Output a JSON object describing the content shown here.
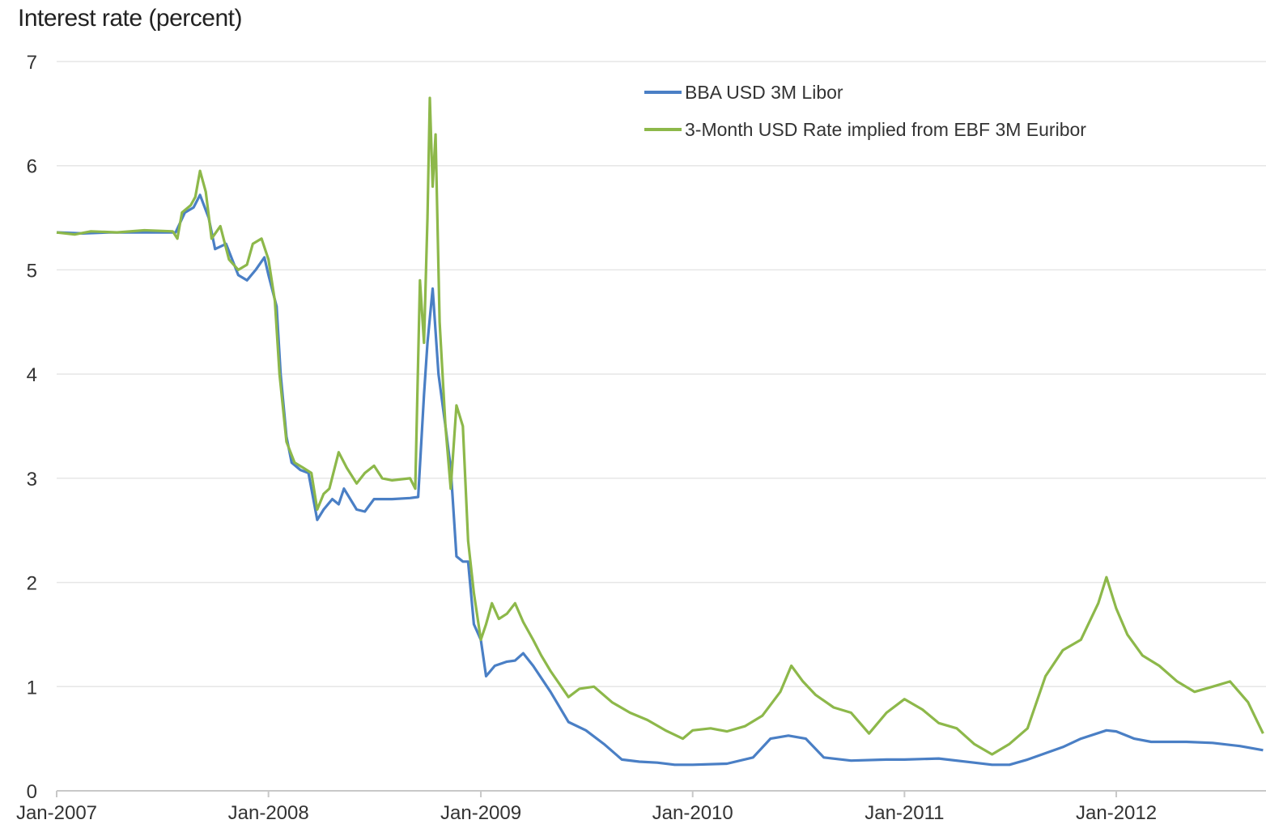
{
  "chart_data": {
    "type": "line",
    "title": "",
    "ylabel": "Interest rate (percent)",
    "xlabel": "",
    "ylim": [
      0,
      7
    ],
    "yticks": [
      "0",
      "1",
      "2",
      "3",
      "4",
      "5",
      "6",
      "7"
    ],
    "xlim": [
      "2007-01",
      "2012-09"
    ],
    "xtick_labels": [
      "Jan-2007",
      "Jan-2008",
      "Jan-2009",
      "Jan-2010",
      "Jan-2011",
      "Jan-2012"
    ],
    "xtick_dates": [
      "2007-01",
      "2008-01",
      "2009-01",
      "2010-01",
      "2011-01",
      "2012-01"
    ],
    "grid": true,
    "legend_position": "top-right",
    "series": [
      {
        "name": "BBA USD 3M Libor",
        "color": "#4a7fc5",
        "points": [
          [
            "2007-01-01",
            5.36
          ],
          [
            "2007-02-15",
            5.35
          ],
          [
            "2007-04-01",
            5.36
          ],
          [
            "2007-06-01",
            5.36
          ],
          [
            "2007-07-25",
            5.36
          ],
          [
            "2007-08-10",
            5.55
          ],
          [
            "2007-08-25",
            5.6
          ],
          [
            "2007-09-05",
            5.72
          ],
          [
            "2007-09-20",
            5.5
          ],
          [
            "2007-10-01",
            5.2
          ],
          [
            "2007-10-20",
            5.25
          ],
          [
            "2007-11-10",
            4.95
          ],
          [
            "2007-11-25",
            4.9
          ],
          [
            "2007-12-10",
            5.0
          ],
          [
            "2007-12-25",
            5.12
          ],
          [
            "2008-01-01",
            4.95
          ],
          [
            "2008-01-08",
            4.8
          ],
          [
            "2008-01-15",
            4.65
          ],
          [
            "2008-01-22",
            4.0
          ],
          [
            "2008-02-01",
            3.4
          ],
          [
            "2008-02-10",
            3.15
          ],
          [
            "2008-02-25",
            3.08
          ],
          [
            "2008-03-10",
            3.05
          ],
          [
            "2008-03-25",
            2.6
          ],
          [
            "2008-04-05",
            2.7
          ],
          [
            "2008-04-20",
            2.8
          ],
          [
            "2008-05-01",
            2.75
          ],
          [
            "2008-05-10",
            2.9
          ],
          [
            "2008-06-01",
            2.7
          ],
          [
            "2008-06-15",
            2.68
          ],
          [
            "2008-07-01",
            2.8
          ],
          [
            "2008-08-01",
            2.8
          ],
          [
            "2008-09-01",
            2.81
          ],
          [
            "2008-09-15",
            2.82
          ],
          [
            "2008-09-25",
            3.8
          ],
          [
            "2008-10-01",
            4.3
          ],
          [
            "2008-10-10",
            4.82
          ],
          [
            "2008-10-20",
            4.0
          ],
          [
            "2008-11-01",
            3.5
          ],
          [
            "2008-11-10",
            3.1
          ],
          [
            "2008-11-20",
            2.25
          ],
          [
            "2008-12-01",
            2.2
          ],
          [
            "2008-12-10",
            2.2
          ],
          [
            "2008-12-20",
            1.6
          ],
          [
            "2009-01-01",
            1.45
          ],
          [
            "2009-01-10",
            1.1
          ],
          [
            "2009-01-25",
            1.2
          ],
          [
            "2009-02-15",
            1.24
          ],
          [
            "2009-03-01",
            1.25
          ],
          [
            "2009-03-15",
            1.32
          ],
          [
            "2009-04-01",
            1.2
          ],
          [
            "2009-05-01",
            0.95
          ],
          [
            "2009-06-01",
            0.66
          ],
          [
            "2009-07-01",
            0.58
          ],
          [
            "2009-08-01",
            0.45
          ],
          [
            "2009-09-01",
            0.3
          ],
          [
            "2009-10-01",
            0.28
          ],
          [
            "2009-11-01",
            0.27
          ],
          [
            "2009-12-01",
            0.25
          ],
          [
            "2010-01-01",
            0.25
          ],
          [
            "2010-03-01",
            0.26
          ],
          [
            "2010-04-15",
            0.32
          ],
          [
            "2010-05-15",
            0.5
          ],
          [
            "2010-06-15",
            0.53
          ],
          [
            "2010-07-15",
            0.5
          ],
          [
            "2010-08-15",
            0.32
          ],
          [
            "2010-10-01",
            0.29
          ],
          [
            "2010-12-01",
            0.3
          ],
          [
            "2011-01-01",
            0.3
          ],
          [
            "2011-03-01",
            0.31
          ],
          [
            "2011-05-01",
            0.27
          ],
          [
            "2011-06-01",
            0.25
          ],
          [
            "2011-07-01",
            0.25
          ],
          [
            "2011-08-01",
            0.3
          ],
          [
            "2011-10-01",
            0.42
          ],
          [
            "2011-11-01",
            0.5
          ],
          [
            "2011-12-15",
            0.58
          ],
          [
            "2012-01-01",
            0.57
          ],
          [
            "2012-02-01",
            0.5
          ],
          [
            "2012-03-01",
            0.47
          ],
          [
            "2012-05-01",
            0.47
          ],
          [
            "2012-06-15",
            0.46
          ],
          [
            "2012-08-01",
            0.43
          ],
          [
            "2012-09-10",
            0.39
          ]
        ]
      },
      {
        "name": "3-Month USD Rate implied from EBF 3M Euribor",
        "color": "#8db84a",
        "points": [
          [
            "2007-01-01",
            5.36
          ],
          [
            "2007-02-01",
            5.34
          ],
          [
            "2007-03-01",
            5.37
          ],
          [
            "2007-04-15",
            5.36
          ],
          [
            "2007-06-01",
            5.38
          ],
          [
            "2007-07-20",
            5.37
          ],
          [
            "2007-07-28",
            5.3
          ],
          [
            "2007-08-05",
            5.55
          ],
          [
            "2007-08-20",
            5.62
          ],
          [
            "2007-08-28",
            5.7
          ],
          [
            "2007-09-05",
            5.95
          ],
          [
            "2007-09-15",
            5.75
          ],
          [
            "2007-09-25",
            5.3
          ],
          [
            "2007-10-10",
            5.42
          ],
          [
            "2007-10-25",
            5.1
          ],
          [
            "2007-11-10",
            5.0
          ],
          [
            "2007-11-25",
            5.05
          ],
          [
            "2007-12-05",
            5.25
          ],
          [
            "2007-12-20",
            5.3
          ],
          [
            "2008-01-01",
            5.1
          ],
          [
            "2008-01-12",
            4.7
          ],
          [
            "2008-01-20",
            4.0
          ],
          [
            "2008-02-01",
            3.35
          ],
          [
            "2008-02-15",
            3.15
          ],
          [
            "2008-03-01",
            3.1
          ],
          [
            "2008-03-15",
            3.05
          ],
          [
            "2008-03-25",
            2.7
          ],
          [
            "2008-04-05",
            2.85
          ],
          [
            "2008-04-15",
            2.9
          ],
          [
            "2008-05-01",
            3.25
          ],
          [
            "2008-05-15",
            3.1
          ],
          [
            "2008-06-01",
            2.95
          ],
          [
            "2008-06-15",
            3.05
          ],
          [
            "2008-07-01",
            3.12
          ],
          [
            "2008-07-15",
            3.0
          ],
          [
            "2008-08-01",
            2.98
          ],
          [
            "2008-09-01",
            3.0
          ],
          [
            "2008-09-10",
            2.9
          ],
          [
            "2008-09-18",
            4.9
          ],
          [
            "2008-09-25",
            4.3
          ],
          [
            "2008-10-01",
            5.5
          ],
          [
            "2008-10-05",
            6.65
          ],
          [
            "2008-10-10",
            5.8
          ],
          [
            "2008-10-15",
            6.3
          ],
          [
            "2008-10-22",
            4.5
          ],
          [
            "2008-11-01",
            3.5
          ],
          [
            "2008-11-10",
            2.9
          ],
          [
            "2008-11-20",
            3.7
          ],
          [
            "2008-12-01",
            3.5
          ],
          [
            "2008-12-10",
            2.4
          ],
          [
            "2008-12-20",
            1.9
          ],
          [
            "2009-01-01",
            1.45
          ],
          [
            "2009-01-10",
            1.6
          ],
          [
            "2009-01-20",
            1.8
          ],
          [
            "2009-02-01",
            1.65
          ],
          [
            "2009-02-15",
            1.7
          ],
          [
            "2009-03-01",
            1.8
          ],
          [
            "2009-03-15",
            1.62
          ],
          [
            "2009-04-01",
            1.45
          ],
          [
            "2009-04-15",
            1.3
          ],
          [
            "2009-05-01",
            1.15
          ],
          [
            "2009-06-01",
            0.9
          ],
          [
            "2009-06-20",
            0.98
          ],
          [
            "2009-07-15",
            1.0
          ],
          [
            "2009-08-15",
            0.85
          ],
          [
            "2009-09-15",
            0.75
          ],
          [
            "2009-10-15",
            0.68
          ],
          [
            "2009-11-15",
            0.58
          ],
          [
            "2009-12-15",
            0.5
          ],
          [
            "2010-01-01",
            0.58
          ],
          [
            "2010-02-01",
            0.6
          ],
          [
            "2010-03-01",
            0.57
          ],
          [
            "2010-04-01",
            0.62
          ],
          [
            "2010-05-01",
            0.72
          ],
          [
            "2010-06-01",
            0.95
          ],
          [
            "2010-06-20",
            1.2
          ],
          [
            "2010-07-10",
            1.05
          ],
          [
            "2010-08-01",
            0.92
          ],
          [
            "2010-09-01",
            0.8
          ],
          [
            "2010-10-01",
            0.75
          ],
          [
            "2010-11-01",
            0.55
          ],
          [
            "2010-12-01",
            0.75
          ],
          [
            "2011-01-01",
            0.88
          ],
          [
            "2011-02-01",
            0.78
          ],
          [
            "2011-03-01",
            0.65
          ],
          [
            "2011-04-01",
            0.6
          ],
          [
            "2011-05-01",
            0.45
          ],
          [
            "2011-06-01",
            0.35
          ],
          [
            "2011-07-01",
            0.45
          ],
          [
            "2011-08-01",
            0.6
          ],
          [
            "2011-09-01",
            1.1
          ],
          [
            "2011-10-01",
            1.35
          ],
          [
            "2011-11-01",
            1.45
          ],
          [
            "2011-12-01",
            1.8
          ],
          [
            "2011-12-15",
            2.05
          ],
          [
            "2012-01-01",
            1.75
          ],
          [
            "2012-01-20",
            1.5
          ],
          [
            "2012-02-15",
            1.3
          ],
          [
            "2012-03-15",
            1.2
          ],
          [
            "2012-04-15",
            1.05
          ],
          [
            "2012-05-15",
            0.95
          ],
          [
            "2012-06-15",
            1.0
          ],
          [
            "2012-07-15",
            1.05
          ],
          [
            "2012-08-15",
            0.85
          ],
          [
            "2012-09-10",
            0.55
          ]
        ]
      }
    ]
  }
}
